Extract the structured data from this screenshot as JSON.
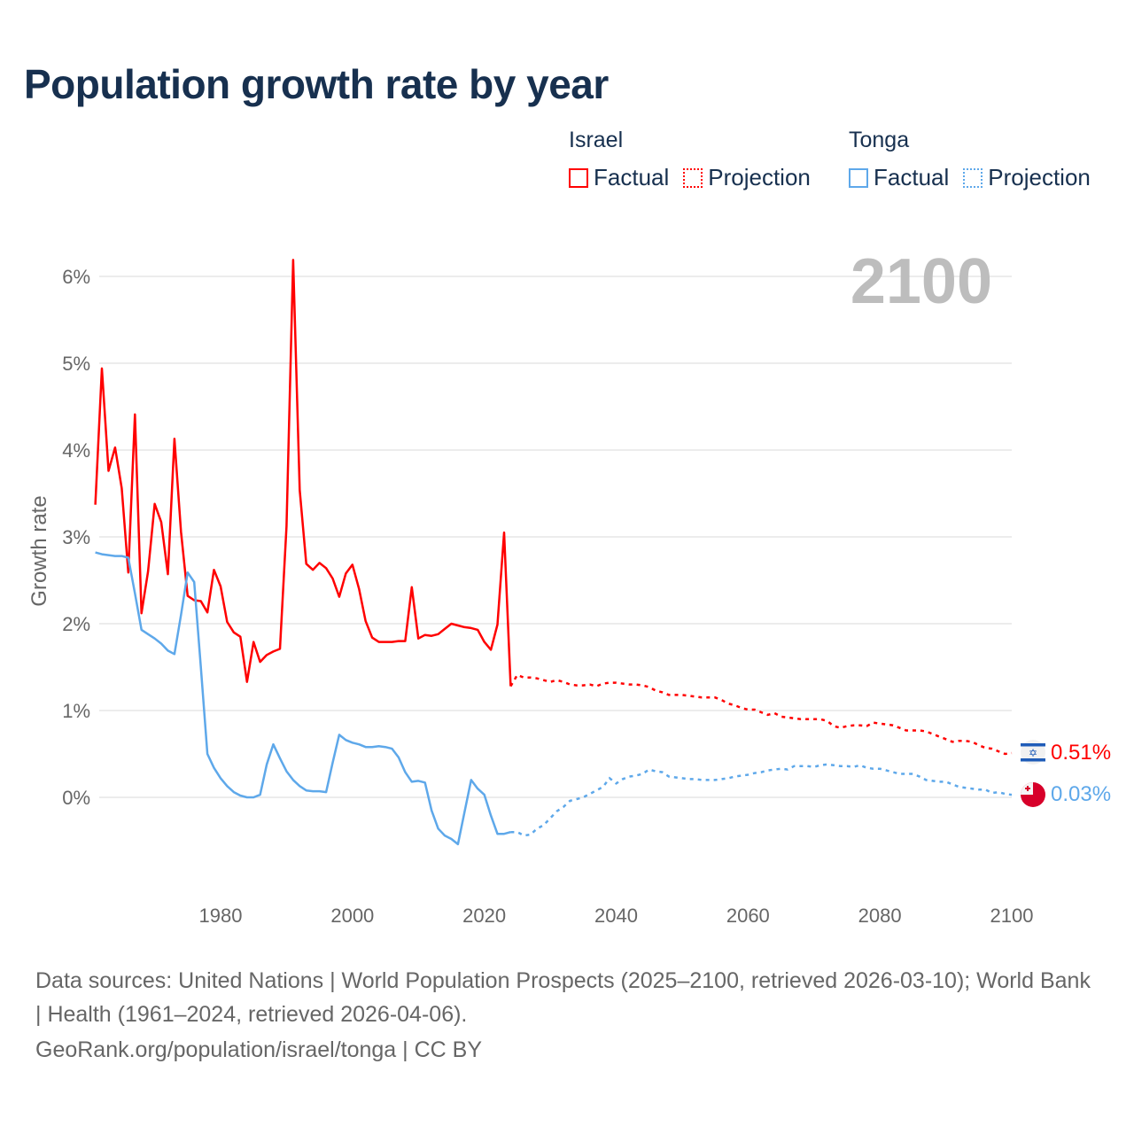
{
  "title": "Population growth rate by year",
  "legend": [
    {
      "country": "Israel",
      "color": "#ff0000",
      "items": [
        "Factual",
        "Projection"
      ]
    },
    {
      "country": "Tonga",
      "color": "#5ea8ea",
      "items": [
        "Factual",
        "Projection"
      ]
    }
  ],
  "year_watermark": "2100",
  "footer": {
    "sources": "Data sources: United Nations | World Population Prospects (2025–2100, retrieved 2026-03-10); World Bank | Health (1961–2024, retrieved 2026-04-06).",
    "credit": "GeoRank.org/population/israel/tonga | CC BY"
  },
  "chart_data": {
    "type": "line",
    "title": "Population growth rate by year",
    "xlabel": "",
    "ylabel": "Growth rate",
    "xlim": [
      1961,
      2100
    ],
    "ylim": [
      -1.1,
      6.3
    ],
    "x_ticks": [
      1980,
      2000,
      2020,
      2040,
      2060,
      2080,
      2100
    ],
    "x_tick_labels": [
      "1980",
      "2000",
      "2020",
      "2040",
      "2060",
      "2080",
      "2100"
    ],
    "y_ticks": [
      0,
      1,
      2,
      3,
      4,
      5,
      6
    ],
    "y_tick_labels": [
      "0%",
      "1%",
      "2%",
      "3%",
      "4%",
      "5%",
      "6%"
    ],
    "grid": true,
    "legend_position": "top-right",
    "series": [
      {
        "name": "Israel",
        "color": "#ff0000",
        "end_label": "0.51%",
        "factual_start": 1961,
        "factual": [
          3.37,
          4.94,
          3.76,
          4.03,
          3.56,
          2.59,
          4.41,
          2.12,
          2.6,
          3.38,
          3.17,
          2.57,
          4.13,
          3.06,
          2.32,
          2.27,
          2.26,
          2.13,
          2.62,
          2.43,
          2.02,
          1.9,
          1.85,
          1.33,
          1.79,
          1.56,
          1.64,
          1.68,
          1.71,
          3.12,
          6.19,
          3.54,
          2.69,
          2.62,
          2.7,
          2.64,
          2.52,
          2.31,
          2.58,
          2.68,
          2.4,
          2.03,
          1.84,
          1.79,
          1.79,
          1.79,
          1.8,
          1.8,
          2.42,
          1.83,
          1.87,
          1.86,
          1.88,
          1.94,
          2.0,
          1.98,
          1.96,
          1.95,
          1.93,
          1.79,
          1.7,
          1.99,
          3.05,
          1.28
        ],
        "projection_start": 2025,
        "projection": [
          1.41,
          1.38,
          1.38,
          1.37,
          1.35,
          1.33,
          1.35,
          1.33,
          1.3,
          1.29,
          1.29,
          1.3,
          1.28,
          1.31,
          1.32,
          1.32,
          1.31,
          1.3,
          1.3,
          1.29,
          1.27,
          1.23,
          1.21,
          1.18,
          1.18,
          1.18,
          1.17,
          1.16,
          1.15,
          1.15,
          1.15,
          1.12,
          1.08,
          1.06,
          1.03,
          1.01,
          1.01,
          0.98,
          0.95,
          0.97,
          0.93,
          0.92,
          0.91,
          0.9,
          0.9,
          0.9,
          0.9,
          0.88,
          0.82,
          0.8,
          0.82,
          0.83,
          0.83,
          0.82,
          0.86,
          0.85,
          0.84,
          0.83,
          0.8,
          0.77,
          0.77,
          0.77,
          0.76,
          0.73,
          0.7,
          0.67,
          0.64,
          0.65,
          0.65,
          0.64,
          0.6,
          0.57,
          0.56,
          0.53,
          0.5,
          0.51
        ]
      },
      {
        "name": "Tonga",
        "color": "#5ea8ea",
        "end_label": "0.03%",
        "factual_start": 1961,
        "factual": [
          2.82,
          2.8,
          2.79,
          2.78,
          2.78,
          2.76,
          2.35,
          1.93,
          1.88,
          1.83,
          1.77,
          1.69,
          1.65,
          2.1,
          2.59,
          2.48,
          1.5,
          0.5,
          0.34,
          0.22,
          0.13,
          0.06,
          0.02,
          0.0,
          0.0,
          0.03,
          0.38,
          0.61,
          0.45,
          0.3,
          0.2,
          0.13,
          0.08,
          0.07,
          0.07,
          0.06,
          0.4,
          0.72,
          0.66,
          0.63,
          0.61,
          0.58,
          0.58,
          0.59,
          0.58,
          0.56,
          0.46,
          0.29,
          0.18,
          0.19,
          0.17,
          -0.15,
          -0.36,
          -0.44,
          -0.48,
          -0.54,
          -0.17,
          0.2,
          0.1,
          0.03,
          -0.21,
          -0.42,
          -0.42,
          -0.4
        ],
        "projection_start": 2025,
        "projection": [
          -0.4,
          -0.44,
          -0.43,
          -0.36,
          -0.32,
          -0.24,
          -0.16,
          -0.11,
          -0.04,
          -0.02,
          0.0,
          0.04,
          0.08,
          0.12,
          0.22,
          0.16,
          0.21,
          0.24,
          0.25,
          0.27,
          0.32,
          0.3,
          0.29,
          0.24,
          0.23,
          0.22,
          0.21,
          0.21,
          0.2,
          0.2,
          0.2,
          0.21,
          0.22,
          0.24,
          0.25,
          0.26,
          0.28,
          0.29,
          0.31,
          0.32,
          0.33,
          0.32,
          0.36,
          0.36,
          0.36,
          0.35,
          0.37,
          0.38,
          0.37,
          0.36,
          0.36,
          0.35,
          0.37,
          0.34,
          0.33,
          0.33,
          0.31,
          0.29,
          0.27,
          0.27,
          0.27,
          0.24,
          0.2,
          0.19,
          0.18,
          0.18,
          0.15,
          0.12,
          0.11,
          0.1,
          0.09,
          0.09,
          0.05,
          0.06,
          0.04,
          0.03
        ]
      }
    ]
  }
}
